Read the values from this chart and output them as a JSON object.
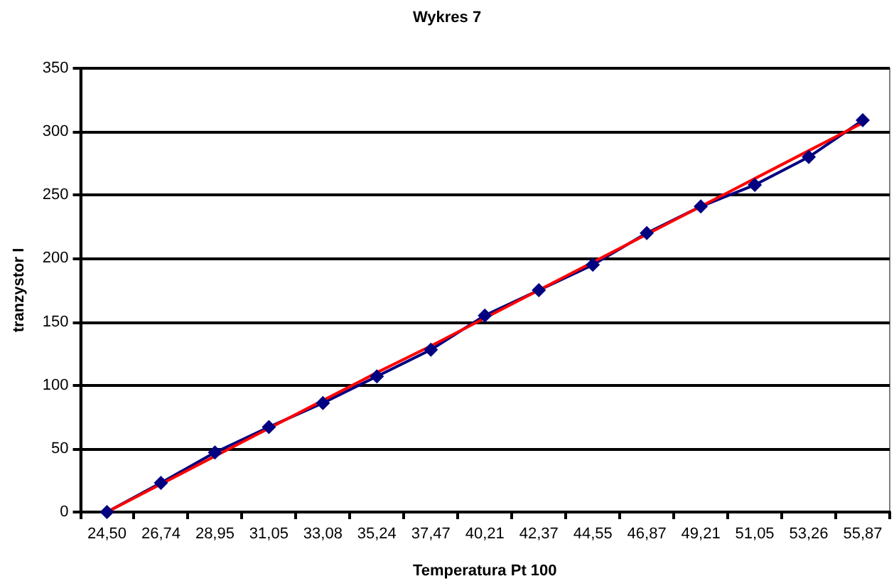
{
  "chart_data": {
    "type": "line",
    "title": "Wykres 7",
    "xlabel": "Temperatura Pt 100",
    "ylabel": "tranzystor I",
    "categories": [
      "24,50",
      "26,74",
      "28,95",
      "31,05",
      "33,08",
      "35,24",
      "37,47",
      "40,21",
      "42,37",
      "44,55",
      "46,87",
      "49,21",
      "51,05",
      "53,26",
      "55,87"
    ],
    "series": [
      {
        "color": "#000080",
        "marker": "diamond",
        "values": [
          0,
          23,
          47,
          67,
          86,
          107,
          128,
          155,
          175,
          195,
          220,
          241,
          258,
          280,
          309
        ]
      },
      {
        "color": "#ff0000",
        "marker": "none",
        "values": [
          0,
          22,
          44,
          66,
          88,
          110,
          131,
          153,
          175,
          197,
          219,
          241,
          263,
          285,
          307
        ]
      }
    ],
    "ylim": [
      0,
      350
    ],
    "yticks": [
      0,
      50,
      100,
      150,
      200,
      250,
      300,
      350
    ],
    "grid": "y"
  }
}
